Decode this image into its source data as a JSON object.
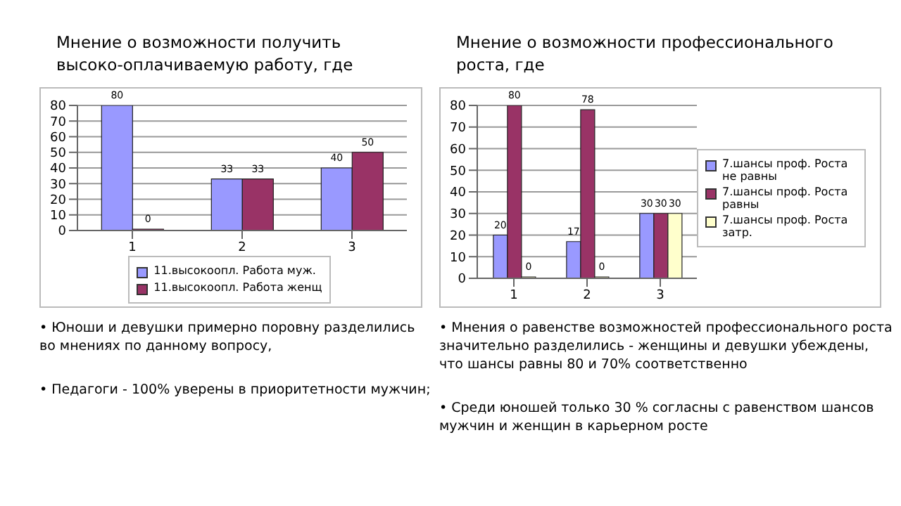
{
  "chart_data": [
    {
      "type": "bar",
      "title": "Мнение о возможности получить высоко-оплачиваемую работу, где",
      "categories": [
        "1",
        "2",
        "3"
      ],
      "series": [
        {
          "name": "11.высокоопл. Работа муж.",
          "color": "#9999ff",
          "values": [
            80,
            33,
            40
          ]
        },
        {
          "name": "11.высокоопл. Работа женщ",
          "color": "#993366",
          "values": [
            0,
            33,
            50
          ]
        }
      ],
      "ylim": [
        0,
        80
      ],
      "yticks": [
        0,
        10,
        20,
        30,
        40,
        50,
        60,
        70,
        80
      ],
      "grid": "y",
      "legend": "bottom",
      "data_labels": true,
      "annotations": [
        "• Юноши и девушки  примерно поровну разделились во мнениях по данному вопросу,",
        "• Педагоги - 100% уверены в приоритетности мужчин;"
      ]
    },
    {
      "type": "bar",
      "title": "Мнение о возможности профессионального роста, где",
      "categories": [
        "1",
        "2",
        "3"
      ],
      "series": [
        {
          "name": "7.шансы проф. Роста не равны",
          "color": "#9999ff",
          "values": [
            20,
            17,
            30
          ]
        },
        {
          "name": "7.шансы проф. Роста равны",
          "color": "#993366",
          "values": [
            80,
            78,
            30
          ]
        },
        {
          "name": "7.шансы проф. Роста затр.",
          "color": "#ffffcc",
          "values": [
            0,
            0,
            30
          ]
        }
      ],
      "ylim": [
        0,
        80
      ],
      "yticks": [
        0,
        10,
        20,
        30,
        40,
        50,
        60,
        70,
        80
      ],
      "grid": "y",
      "legend": "right",
      "data_labels": true,
      "annotations": [
        "• Мнения о равенстве возможностей профессионального роста значительно разделились - женщины и девушки убеждены, что шансы равны 80 и 70% соответственно",
        "• Среди юношей только 30 % согласны с равенством шансов мужчин и женщин в карьерном росте"
      ]
    }
  ]
}
